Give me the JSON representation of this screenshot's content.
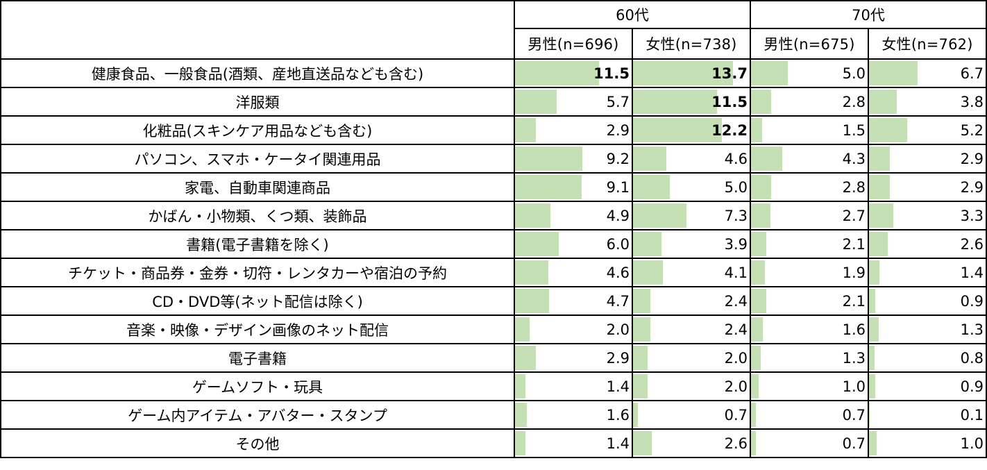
{
  "colors": {
    "bar": "#c5e0b4",
    "border": "#000000"
  },
  "chart_data": {
    "type": "table",
    "xlim": [
      0,
      16
    ],
    "groups": [
      {
        "label": "60代",
        "series_index": [
          0,
          1
        ]
      },
      {
        "label": "70代",
        "series_index": [
          2,
          3
        ]
      }
    ],
    "series": [
      {
        "name": "男性(n=696)",
        "values": [
          11.5,
          5.7,
          2.9,
          9.2,
          9.1,
          4.9,
          6.0,
          4.6,
          4.7,
          2.0,
          2.9,
          1.4,
          1.6,
          1.4
        ]
      },
      {
        "name": "女性(n=738)",
        "values": [
          13.7,
          11.5,
          12.2,
          4.6,
          5.0,
          7.3,
          3.9,
          4.1,
          2.4,
          2.4,
          2.0,
          2.0,
          0.7,
          2.6
        ]
      },
      {
        "name": "男性(n=675)",
        "values": [
          5.0,
          2.8,
          1.5,
          4.3,
          2.8,
          2.7,
          2.1,
          1.9,
          2.1,
          1.6,
          1.3,
          1.0,
          0.7,
          0.7
        ]
      },
      {
        "name": "女性(n=762)",
        "values": [
          6.7,
          3.8,
          5.2,
          2.9,
          2.9,
          3.3,
          2.6,
          1.4,
          0.9,
          1.3,
          0.8,
          0.9,
          0.1,
          1.0
        ]
      }
    ],
    "categories": [
      "健康食品、一般食品(酒類、産地直送品なども含む)",
      "洋服類",
      "化粧品(スキンケア用品なども含む)",
      "パソコン、スマホ・ケータイ関連用品",
      "家電、自動車関連商品",
      "かばん・小物類、くつ類、装飾品",
      "書籍(電子書籍を除く)",
      "チケット・商品券・金券・切符・レンタカーや宿泊の予約",
      "CD・DVD等(ネット配信は除く)",
      "音楽・映像・デザイン画像のネット配信",
      "電子書籍",
      "ゲームソフト・玩具",
      "ゲーム内アイテム・アバター・スタンプ",
      "その他"
    ],
    "bold_cells": [
      [
        0,
        0
      ],
      [
        0,
        1
      ],
      [
        1,
        1
      ],
      [
        2,
        1
      ]
    ]
  }
}
